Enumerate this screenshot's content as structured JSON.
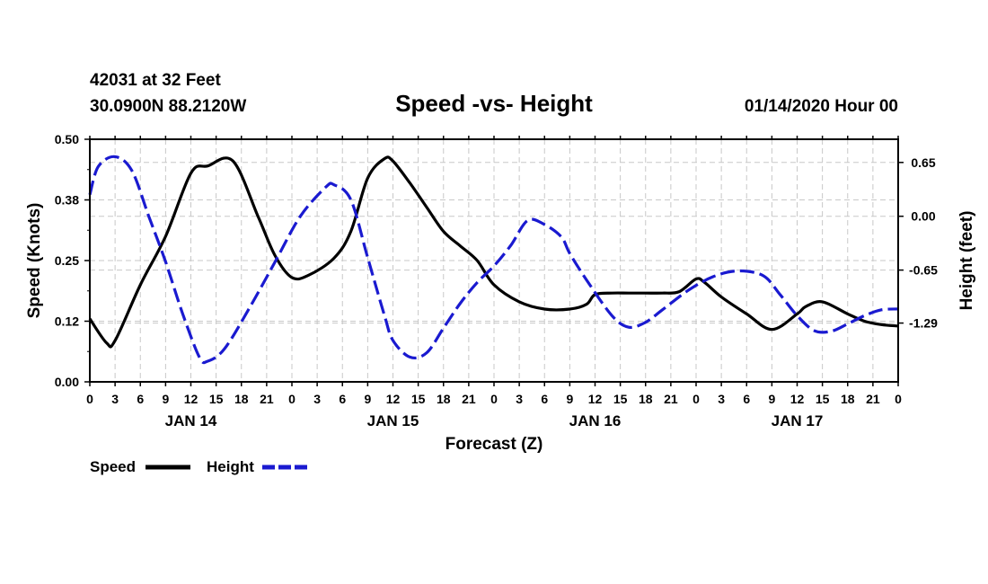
{
  "header": {
    "station": "42031 at 32 Feet",
    "position": "30.0900N 88.2120W",
    "date": "01/14/2020 Hour 00"
  },
  "legend": {
    "speed_label": "Speed",
    "height_label": "Height"
  },
  "colors": {
    "speed": "#000000",
    "height": "#1a1ad0",
    "grid": "#c8c8c8"
  },
  "chart_data": {
    "type": "line",
    "title": "Speed -vs- Height",
    "xlabel": "Forecast (Z)",
    "ylabel_left": "Speed (Knots)",
    "ylabel_right": "Height (feet)",
    "grid": true,
    "legend_position": "bottom-left",
    "x_tick_labels": [
      "0",
      "3",
      "6",
      "9",
      "12",
      "15",
      "18",
      "21",
      "0",
      "3",
      "6",
      "9",
      "12",
      "15",
      "18",
      "21",
      "0",
      "3",
      "6",
      "9",
      "12",
      "15",
      "18",
      "21",
      "0",
      "3",
      "6",
      "9",
      "12",
      "15",
      "18",
      "21",
      "0"
    ],
    "day_labels": [
      {
        "label": "JAN 14",
        "at_hour": 12
      },
      {
        "label": "JAN 15",
        "at_hour": 36
      },
      {
        "label": "JAN 16",
        "at_hour": 60
      },
      {
        "label": "JAN 17",
        "at_hour": 84
      }
    ],
    "xlim": [
      0,
      96
    ],
    "ylim_left": [
      0.0,
      0.5
    ],
    "y_left_ticks": [
      {
        "value": 0.0,
        "label": "0.00"
      },
      {
        "value": 0.125,
        "label": "0.12"
      },
      {
        "value": 0.25,
        "label": "0.25"
      },
      {
        "value": 0.375,
        "label": "0.38"
      },
      {
        "value": 0.5,
        "label": "0.50"
      }
    ],
    "ylim_right": [
      -2.0,
      0.93
    ],
    "y_right_ticks": [
      {
        "value": 0.65,
        "label": "0.65"
      },
      {
        "value": 0.0,
        "label": "0.00"
      },
      {
        "value": -0.65,
        "label": "-0.65"
      },
      {
        "value": -1.29,
        "label": "-1.29"
      }
    ],
    "series": [
      {
        "name": "Speed",
        "axis": "left",
        "style": "solid",
        "x": [
          0,
          2,
          3,
          6,
          9,
          12,
          14,
          17,
          20,
          22,
          24,
          26,
          29,
          31,
          33,
          35,
          36,
          38,
          40,
          42,
          44,
          46,
          48,
          51,
          54,
          57,
          59,
          60,
          62,
          64,
          66,
          68,
          70,
          72,
          73,
          75,
          78,
          81,
          84,
          85,
          87,
          90,
          92,
          94,
          96
        ],
        "y": [
          0.13,
          0.08,
          0.085,
          0.2,
          0.3,
          0.43,
          0.445,
          0.455,
          0.34,
          0.26,
          0.215,
          0.22,
          0.255,
          0.31,
          0.42,
          0.46,
          0.455,
          0.41,
          0.36,
          0.31,
          0.28,
          0.25,
          0.2,
          0.165,
          0.15,
          0.15,
          0.16,
          0.18,
          0.183,
          0.183,
          0.183,
          0.183,
          0.186,
          0.212,
          0.205,
          0.175,
          0.14,
          0.108,
          0.14,
          0.155,
          0.165,
          0.14,
          0.125,
          0.118,
          0.115
        ]
      },
      {
        "name": "Height",
        "axis": "right",
        "style": "dashed",
        "x": [
          0,
          1,
          3,
          5,
          7,
          9,
          11,
          13,
          14,
          16,
          19,
          22,
          25,
          28,
          29,
          31,
          33,
          35,
          36,
          38,
          40,
          42,
          44,
          46,
          48,
          50,
          52,
          54,
          56,
          57,
          59,
          62,
          64,
          66,
          68,
          71,
          74,
          77,
          80,
          82,
          84,
          86,
          88,
          90,
          92,
          94,
          96
        ],
        "y": [
          0.26,
          0.6,
          0.72,
          0.55,
          0.0,
          -0.55,
          -1.17,
          -1.7,
          -1.75,
          -1.6,
          -1.1,
          -0.55,
          0.0,
          0.35,
          0.38,
          0.2,
          -0.5,
          -1.2,
          -1.5,
          -1.7,
          -1.65,
          -1.35,
          -1.05,
          -0.8,
          -0.6,
          -0.35,
          -0.05,
          -0.1,
          -0.25,
          -0.45,
          -0.77,
          -1.2,
          -1.34,
          -1.28,
          -1.13,
          -0.9,
          -0.73,
          -0.66,
          -0.72,
          -0.95,
          -1.2,
          -1.38,
          -1.39,
          -1.3,
          -1.2,
          -1.13,
          -1.12
        ]
      }
    ]
  }
}
